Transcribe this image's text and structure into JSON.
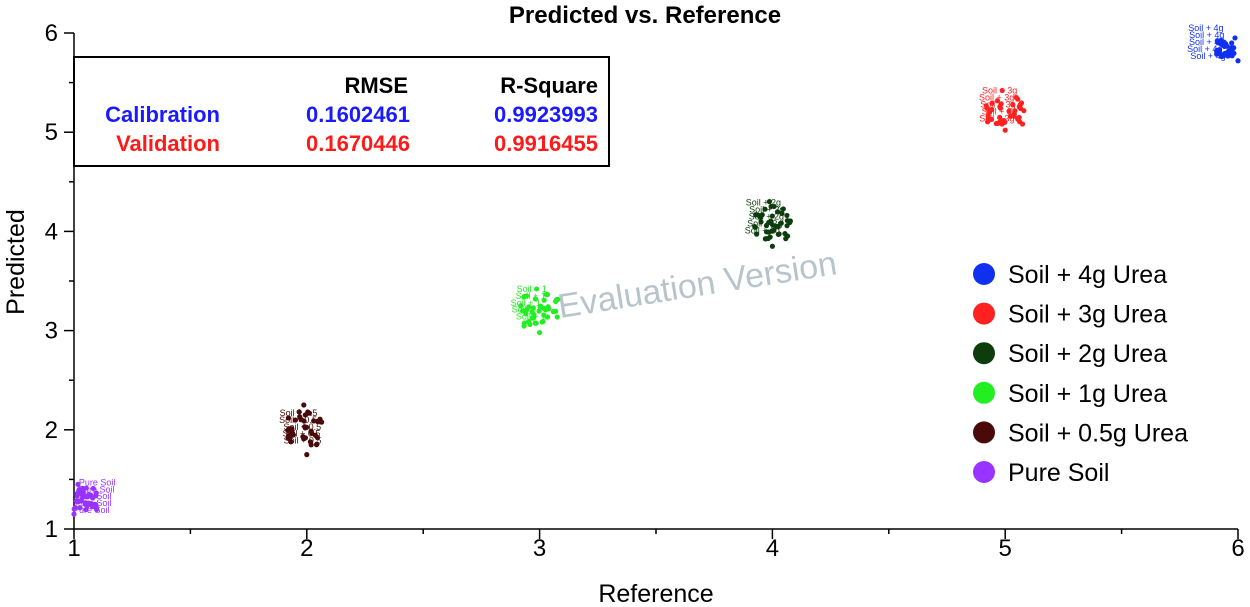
{
  "chart_data": {
    "type": "scatter",
    "title": "Predicted vs. Reference",
    "xlabel": "Reference",
    "ylabel": "Predicted",
    "xlim": [
      1,
      6
    ],
    "ylim": [
      1,
      6
    ],
    "xticks": [
      "1",
      "2",
      "3",
      "4",
      "5",
      "6"
    ],
    "yticks": [
      "1",
      "2",
      "3",
      "4",
      "5",
      "6"
    ],
    "grid": false,
    "watermark": "Evaluation Version",
    "stats": {
      "headers": [
        "RMSE",
        "R-Square"
      ],
      "rows": [
        {
          "name": "Calibration",
          "rmse": "0.1602461",
          "r2": "0.9923993",
          "color": "#1a1aff"
        },
        {
          "name": "Validation",
          "rmse": "0.1670446",
          "r2": "0.9916455",
          "color": "#ff1a1a"
        }
      ]
    },
    "legend_position": "right",
    "series": [
      {
        "name": "Soil + 4g Urea",
        "color": "#1030f0",
        "label": "Soil + 4g",
        "x": 6,
        "y_min": 5.72,
        "y_max": 5.95,
        "y_mean": 5.88
      },
      {
        "name": "Soil + 3g Urea",
        "color": "#ff2020",
        "label": "Soil + 3g",
        "x": 5,
        "y_min": 5.02,
        "y_max": 5.42,
        "y_mean": 5.25
      },
      {
        "name": "Soil + 2g Urea",
        "color": "#0d3d0d",
        "label": "Soil + 2g",
        "x": 4,
        "y_min": 3.85,
        "y_max": 4.3,
        "y_mean": 4.12
      },
      {
        "name": "Soil + 1g Urea",
        "color": "#22ee22",
        "label": "Soil + 1",
        "x": 3,
        "y_min": 2.98,
        "y_max": 3.42,
        "y_mean": 3.25
      },
      {
        "name": "Soil + 0.5g Urea",
        "color": "#4a0a0a",
        "label": "Soil + 0.5",
        "x": 2,
        "y_min": 1.75,
        "y_max": 2.25,
        "y_mean": 2.0
      },
      {
        "name": "Pure Soil",
        "color": "#9933ff",
        "label": "Pure Soil",
        "x": 1,
        "y_min": 1.15,
        "y_max": 1.45,
        "y_mean": 1.3
      }
    ]
  }
}
